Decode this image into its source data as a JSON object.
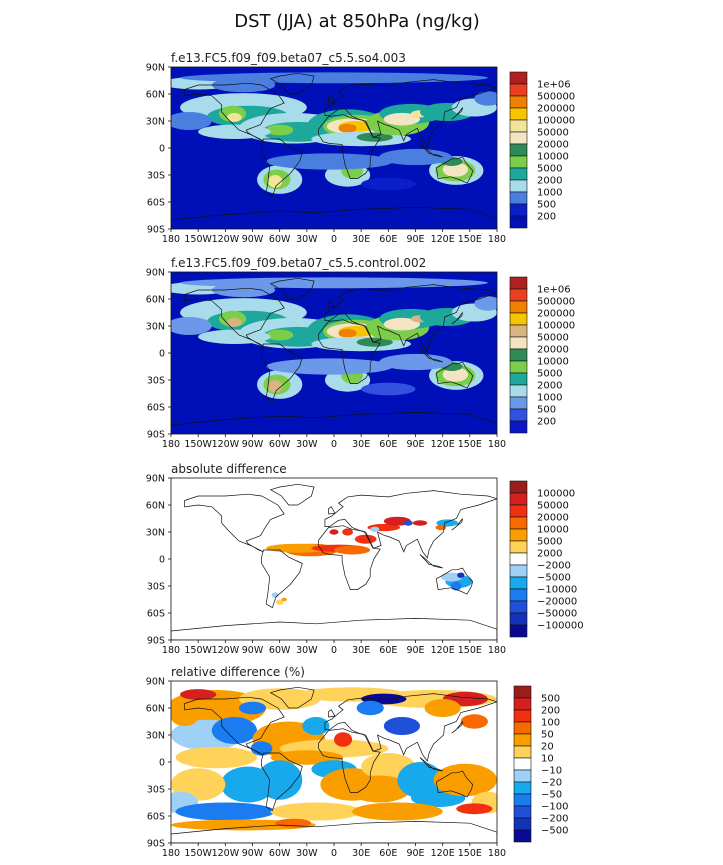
{
  "figure_title": "DST (JJA) at 850hPa (ng/kg)",
  "chart_data": [
    {
      "type": "heatmap",
      "title": "f.e13.FC5.f09_f09.beta07_c5.5.so4.003",
      "x_ticks": [
        "180",
        "150W",
        "120W",
        "90W",
        "60W",
        "30W",
        "0",
        "30E",
        "60E",
        "90E",
        "120E",
        "150E",
        "180"
      ],
      "y_ticks": [
        "90N",
        "60N",
        "30N",
        "0",
        "30S",
        "60S",
        "90S"
      ],
      "xlim": [
        -180,
        180
      ],
      "ylim": [
        -90,
        90
      ],
      "legend_levels": [
        "1e+06",
        "500000",
        "200000",
        "100000",
        "50000",
        "20000",
        "10000",
        "5000",
        "2000",
        "1000",
        "500",
        "200"
      ],
      "colors": [
        "#b02020",
        "#e84020",
        "#f08000",
        "#f7c400",
        "#f2e49a",
        "#f3e4c4",
        "#2e8b57",
        "#7ccd4a",
        "#1ea89c",
        "#a8dcea",
        "#4a7fe0",
        "#0a1fc8",
        "#0010b8"
      ],
      "base_color": "#0010b8",
      "pattern": "concentration"
    },
    {
      "type": "heatmap",
      "title": "f.e13.FC5.f09_f09.beta07_c5.5.control.002",
      "x_ticks": [
        "180",
        "150W",
        "120W",
        "90W",
        "60W",
        "30W",
        "0",
        "30E",
        "60E",
        "90E",
        "120E",
        "150E",
        "180"
      ],
      "y_ticks": [
        "90N",
        "60N",
        "30N",
        "0",
        "30S",
        "60S",
        "90S"
      ],
      "xlim": [
        -180,
        180
      ],
      "ylim": [
        -90,
        90
      ],
      "legend_levels": [
        "1e+06",
        "500000",
        "200000",
        "100000",
        "50000",
        "20000",
        "10000",
        "5000",
        "2000",
        "1000",
        "500",
        "200"
      ],
      "colors": [
        "#b02020",
        "#e84020",
        "#f08000",
        "#f7c400",
        "#d9b480",
        "#f3e4c4",
        "#2e8b57",
        "#7ccd4a",
        "#1ea89c",
        "#a8dcea",
        "#6b98e8",
        "#3350e0",
        "#0a18c4"
      ],
      "base_color": "#0010b8",
      "pattern": "concentration"
    },
    {
      "type": "heatmap",
      "title": "absolute difference",
      "x_ticks": [
        "180",
        "150W",
        "120W",
        "90W",
        "60W",
        "30W",
        "0",
        "30E",
        "60E",
        "90E",
        "120E",
        "150E",
        "180"
      ],
      "y_ticks": [
        "90N",
        "60N",
        "30N",
        "0",
        "30S",
        "60S",
        "90S"
      ],
      "xlim": [
        -180,
        180
      ],
      "ylim": [
        -90,
        90
      ],
      "legend_levels": [
        "100000",
        "50000",
        "20000",
        "10000",
        "5000",
        "2000",
        "−2000",
        "−5000",
        "−10000",
        "−20000",
        "−50000",
        "−100000"
      ],
      "colors": [
        "#9b1c1c",
        "#d52020",
        "#f03010",
        "#f86a00",
        "#fa9e00",
        "#ffd35a",
        "#ffffff",
        "#9fd0f5",
        "#18a8ec",
        "#1a7cf0",
        "#1e50d8",
        "#1432b8",
        "#0a0a90"
      ],
      "base_color": "#ffffff",
      "pattern": "absdiff"
    },
    {
      "type": "heatmap",
      "title": "relative difference (%)",
      "x_ticks": [
        "180",
        "150W",
        "120W",
        "90W",
        "60W",
        "30W",
        "0",
        "30E",
        "60E",
        "90E",
        "120E",
        "150E",
        "180"
      ],
      "y_ticks": [
        "90N",
        "60N",
        "30N",
        "0",
        "30S",
        "60S",
        "90S"
      ],
      "xlim": [
        -180,
        180
      ],
      "ylim": [
        -90,
        90
      ],
      "legend_levels": [
        "500",
        "200",
        "100",
        "50",
        "20",
        "10",
        "−10",
        "−20",
        "−50",
        "−100",
        "−200",
        "−500"
      ],
      "colors": [
        "#9b1c1c",
        "#d52020",
        "#f03010",
        "#f86a00",
        "#fa9e00",
        "#ffd35a",
        "#ffffff",
        "#9fd0f5",
        "#18a8ec",
        "#1a7cf0",
        "#1e50d8",
        "#1432b8",
        "#0a0a90"
      ],
      "base_color": "#ffffff",
      "pattern": "reldiff"
    }
  ]
}
